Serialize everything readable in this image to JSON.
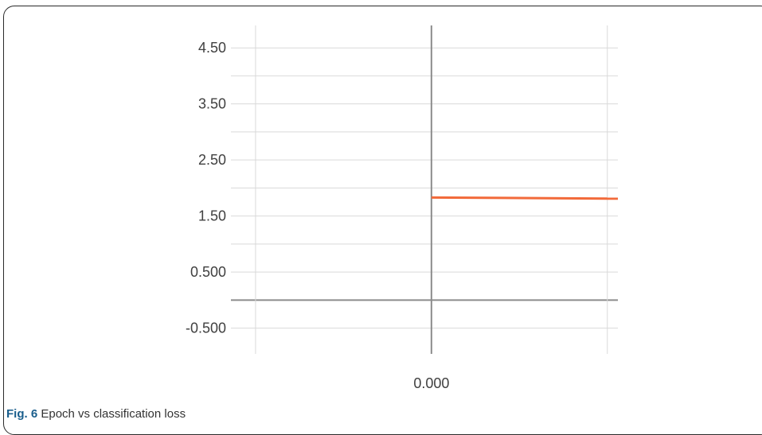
{
  "caption": {
    "label": "Fig. 6",
    "text": "Epoch vs classification loss"
  },
  "colors": {
    "series": "#f26a3a",
    "grid": "#d9d9d9",
    "axis_zero": "#8c8c8c",
    "tick_text": "#404040"
  },
  "chart_data": {
    "type": "line",
    "title": "",
    "xlabel": "",
    "ylabel": "",
    "grid": true,
    "x_tick_labels": [
      {
        "value": 0,
        "label": "0.000"
      }
    ],
    "y_tick_labels": [
      {
        "value": 4.5,
        "label": "4.50"
      },
      {
        "value": 3.5,
        "label": "3.50"
      },
      {
        "value": 2.5,
        "label": "2.50"
      },
      {
        "value": 1.5,
        "label": "1.50"
      },
      {
        "value": 0.5,
        "label": "0.500"
      },
      {
        "value": -0.5,
        "label": "-0.500"
      }
    ],
    "y_minor_gridlines": [
      4.0,
      3.0,
      2.0,
      1.0,
      0.0
    ],
    "x_gridlines": [
      -0.5,
      0,
      0.5
    ],
    "xlim": [
      -0.57,
      0.53
    ],
    "ylim": [
      -0.96,
      4.9
    ],
    "series": [
      {
        "x": [
          0,
          0.53
        ],
        "y": [
          1.83,
          1.81
        ]
      }
    ]
  }
}
